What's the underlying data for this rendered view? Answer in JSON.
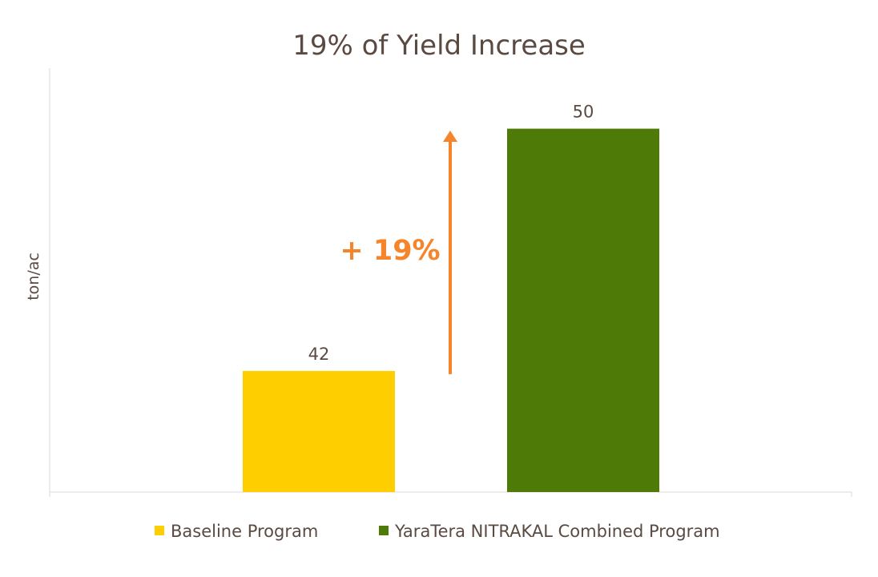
{
  "chart_data": {
    "type": "bar",
    "title": "19% of Yield Increase",
    "ylabel": "ton/ac",
    "xlabel": "",
    "categories": [
      "Baseline Program",
      "YaraTera NITRAKAL Combined Program"
    ],
    "values": [
      42,
      50
    ],
    "data_labels": [
      "42",
      "50"
    ],
    "colors": [
      "#FFCE00",
      "#4E7A08"
    ],
    "ylim": [
      38,
      52
    ],
    "grid": false,
    "legend": {
      "position": "bottom",
      "entries": [
        "Baseline Program",
        "YaraTera NITRAKAL Combined Program"
      ]
    },
    "annotation": {
      "text": "+ 19%",
      "color": "#F5842A",
      "arrow": "up"
    }
  }
}
